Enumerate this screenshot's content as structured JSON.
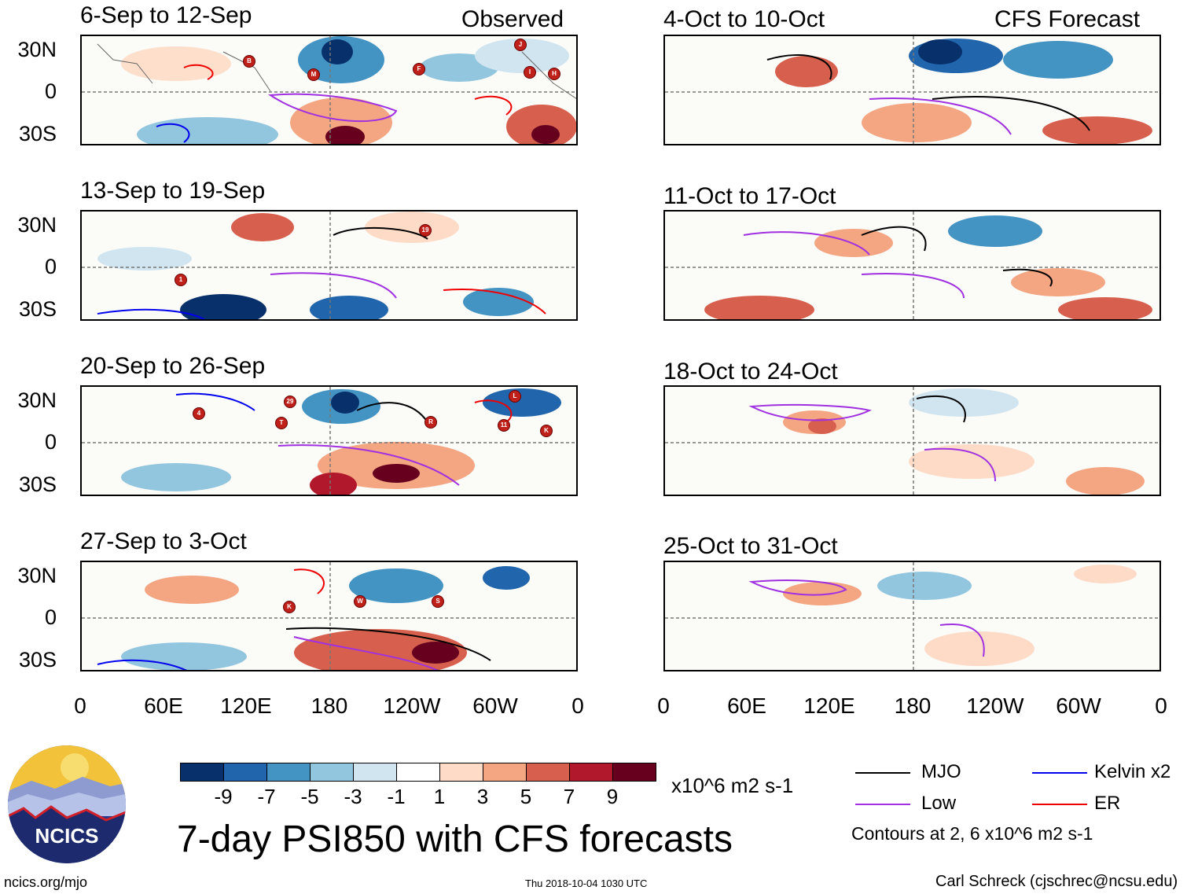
{
  "panels": {
    "observed_header": "Observed",
    "forecast_header": "CFS Forecast",
    "observed": [
      {
        "title": "6-Sep to 12-Sep"
      },
      {
        "title": "13-Sep to 19-Sep"
      },
      {
        "title": "20-Sep to 26-Sep"
      },
      {
        "title": "27-Sep to 3-Oct"
      }
    ],
    "forecast": [
      {
        "title": "4-Oct to 10-Oct"
      },
      {
        "title": "11-Oct to 17-Oct"
      },
      {
        "title": "18-Oct to 24-Oct"
      },
      {
        "title": "25-Oct to 31-Oct"
      }
    ]
  },
  "lat_labels": [
    "30N",
    "0",
    "30S"
  ],
  "lon_labels": [
    "0",
    "60E",
    "120E",
    "180",
    "120W",
    "60W",
    "0"
  ],
  "colorbar": {
    "units": "x10^6 m2 s-1",
    "colors": [
      "#08306b",
      "#2166ac",
      "#4393c3",
      "#92c5de",
      "#d1e5f0",
      "#ffffff",
      "#fddbc7",
      "#f4a582",
      "#d6604d",
      "#b2182b",
      "#67001f"
    ],
    "labels": [
      "-9",
      "-7",
      "-5",
      "-3",
      "-1",
      "1",
      "3",
      "5",
      "7",
      "9"
    ]
  },
  "legend": {
    "items": [
      {
        "label": "MJO",
        "color": "#000000"
      },
      {
        "label": "Kelvin x2",
        "color": "#0000ee"
      },
      {
        "label": "Low",
        "color": "#a030e0"
      },
      {
        "label": "ER",
        "color": "#ee0000"
      }
    ],
    "note": "Contours at 2, 6 x10^6 m2 s-1"
  },
  "main_title": "7-day PSI850 with CFS forecasts",
  "logo_text": "NCICS",
  "footer": {
    "site": "ncics.org/mjo",
    "timestamp": "Thu 2018-10-04 1030 UTC",
    "credit": "Carl Schreck (cjschrec@ncsu.edu)"
  },
  "storm_markers": [
    [
      "B",
      "M",
      "F",
      "I",
      "H",
      "J"
    ],
    [
      "1",
      "19"
    ],
    [
      "4",
      "T",
      "29",
      "R",
      "11",
      "K",
      "L"
    ],
    [
      "K",
      "W",
      "S"
    ]
  ]
}
